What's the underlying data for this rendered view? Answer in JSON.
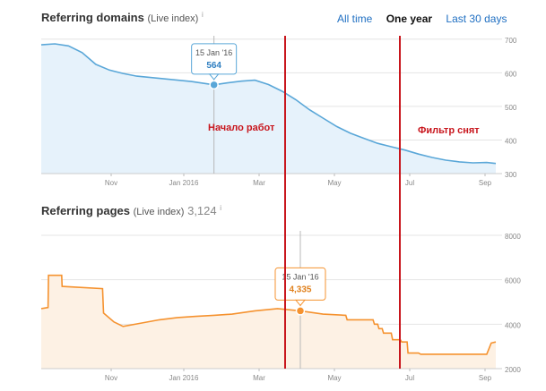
{
  "range_tabs": [
    "All time",
    "One year",
    "Last 30 days"
  ],
  "active_tab": "One year",
  "annotations": {
    "start_label": "Начало работ",
    "lifted_label": "Фильтр снят"
  },
  "chart_data": [
    {
      "type": "area",
      "title": "Referring domains",
      "subtitle": "(Live index)",
      "info_mark": "i",
      "x_ticks": [
        "Nov",
        "Jan 2016",
        "Mar",
        "May",
        "Jul",
        "Sep"
      ],
      "y_ticks": [
        300,
        400,
        500,
        600,
        700
      ],
      "ylim": [
        300,
        710
      ],
      "color": "#5aa7d8",
      "fill": "#e6f2fb",
      "tooltip": {
        "date": "15 Jan '16",
        "value": "564"
      },
      "x": [
        0,
        3,
        6,
        9,
        12,
        15,
        18,
        21,
        24,
        27,
        30,
        33,
        36,
        38,
        41,
        44,
        47,
        50,
        53,
        56,
        59,
        62,
        65,
        68,
        71,
        74,
        77,
        80,
        83,
        86,
        89,
        92,
        95,
        98,
        100
      ],
      "y": [
        683,
        686,
        680,
        660,
        625,
        608,
        598,
        590,
        586,
        582,
        578,
        574,
        568,
        564,
        570,
        575,
        578,
        565,
        545,
        520,
        490,
        465,
        440,
        420,
        405,
        390,
        380,
        370,
        358,
        348,
        340,
        335,
        332,
        333,
        330
      ]
    },
    {
      "type": "area",
      "title": "Referring pages",
      "subtitle": "(Live index)",
      "count": "3,124",
      "info_mark": "i",
      "x_ticks": [
        "Nov",
        "Jan 2016",
        "Mar",
        "May",
        "Jul",
        "Sep"
      ],
      "y_ticks": [
        2000,
        4000,
        6000,
        8000
      ],
      "ylim": [
        2000,
        8200
      ],
      "color": "#f5922f",
      "fill": "#fdf1e4",
      "tooltip": {
        "date": "15 Jan '16",
        "value": "4,335"
      },
      "x": [
        0,
        1.5,
        1.6,
        4.5,
        4.6,
        13.5,
        13.7,
        16,
        18,
        22,
        26,
        30,
        34,
        38,
        42,
        47,
        52,
        57,
        62,
        67,
        67.3,
        73,
        73.3,
        74,
        74.3,
        75,
        75.3,
        77,
        77.3,
        79,
        79.3,
        80.5,
        80.7,
        83,
        83.5,
        98,
        99,
        100
      ],
      "y": [
        4700,
        4750,
        6200,
        6200,
        5700,
        5600,
        4500,
        4100,
        3900,
        4050,
        4200,
        4300,
        4350,
        4400,
        4450,
        4600,
        4700,
        4600,
        4450,
        4400,
        4200,
        4200,
        4000,
        4000,
        3800,
        3800,
        3600,
        3600,
        3300,
        3300,
        3200,
        3200,
        2700,
        2700,
        2650,
        2650,
        3150,
        3200
      ]
    }
  ]
}
